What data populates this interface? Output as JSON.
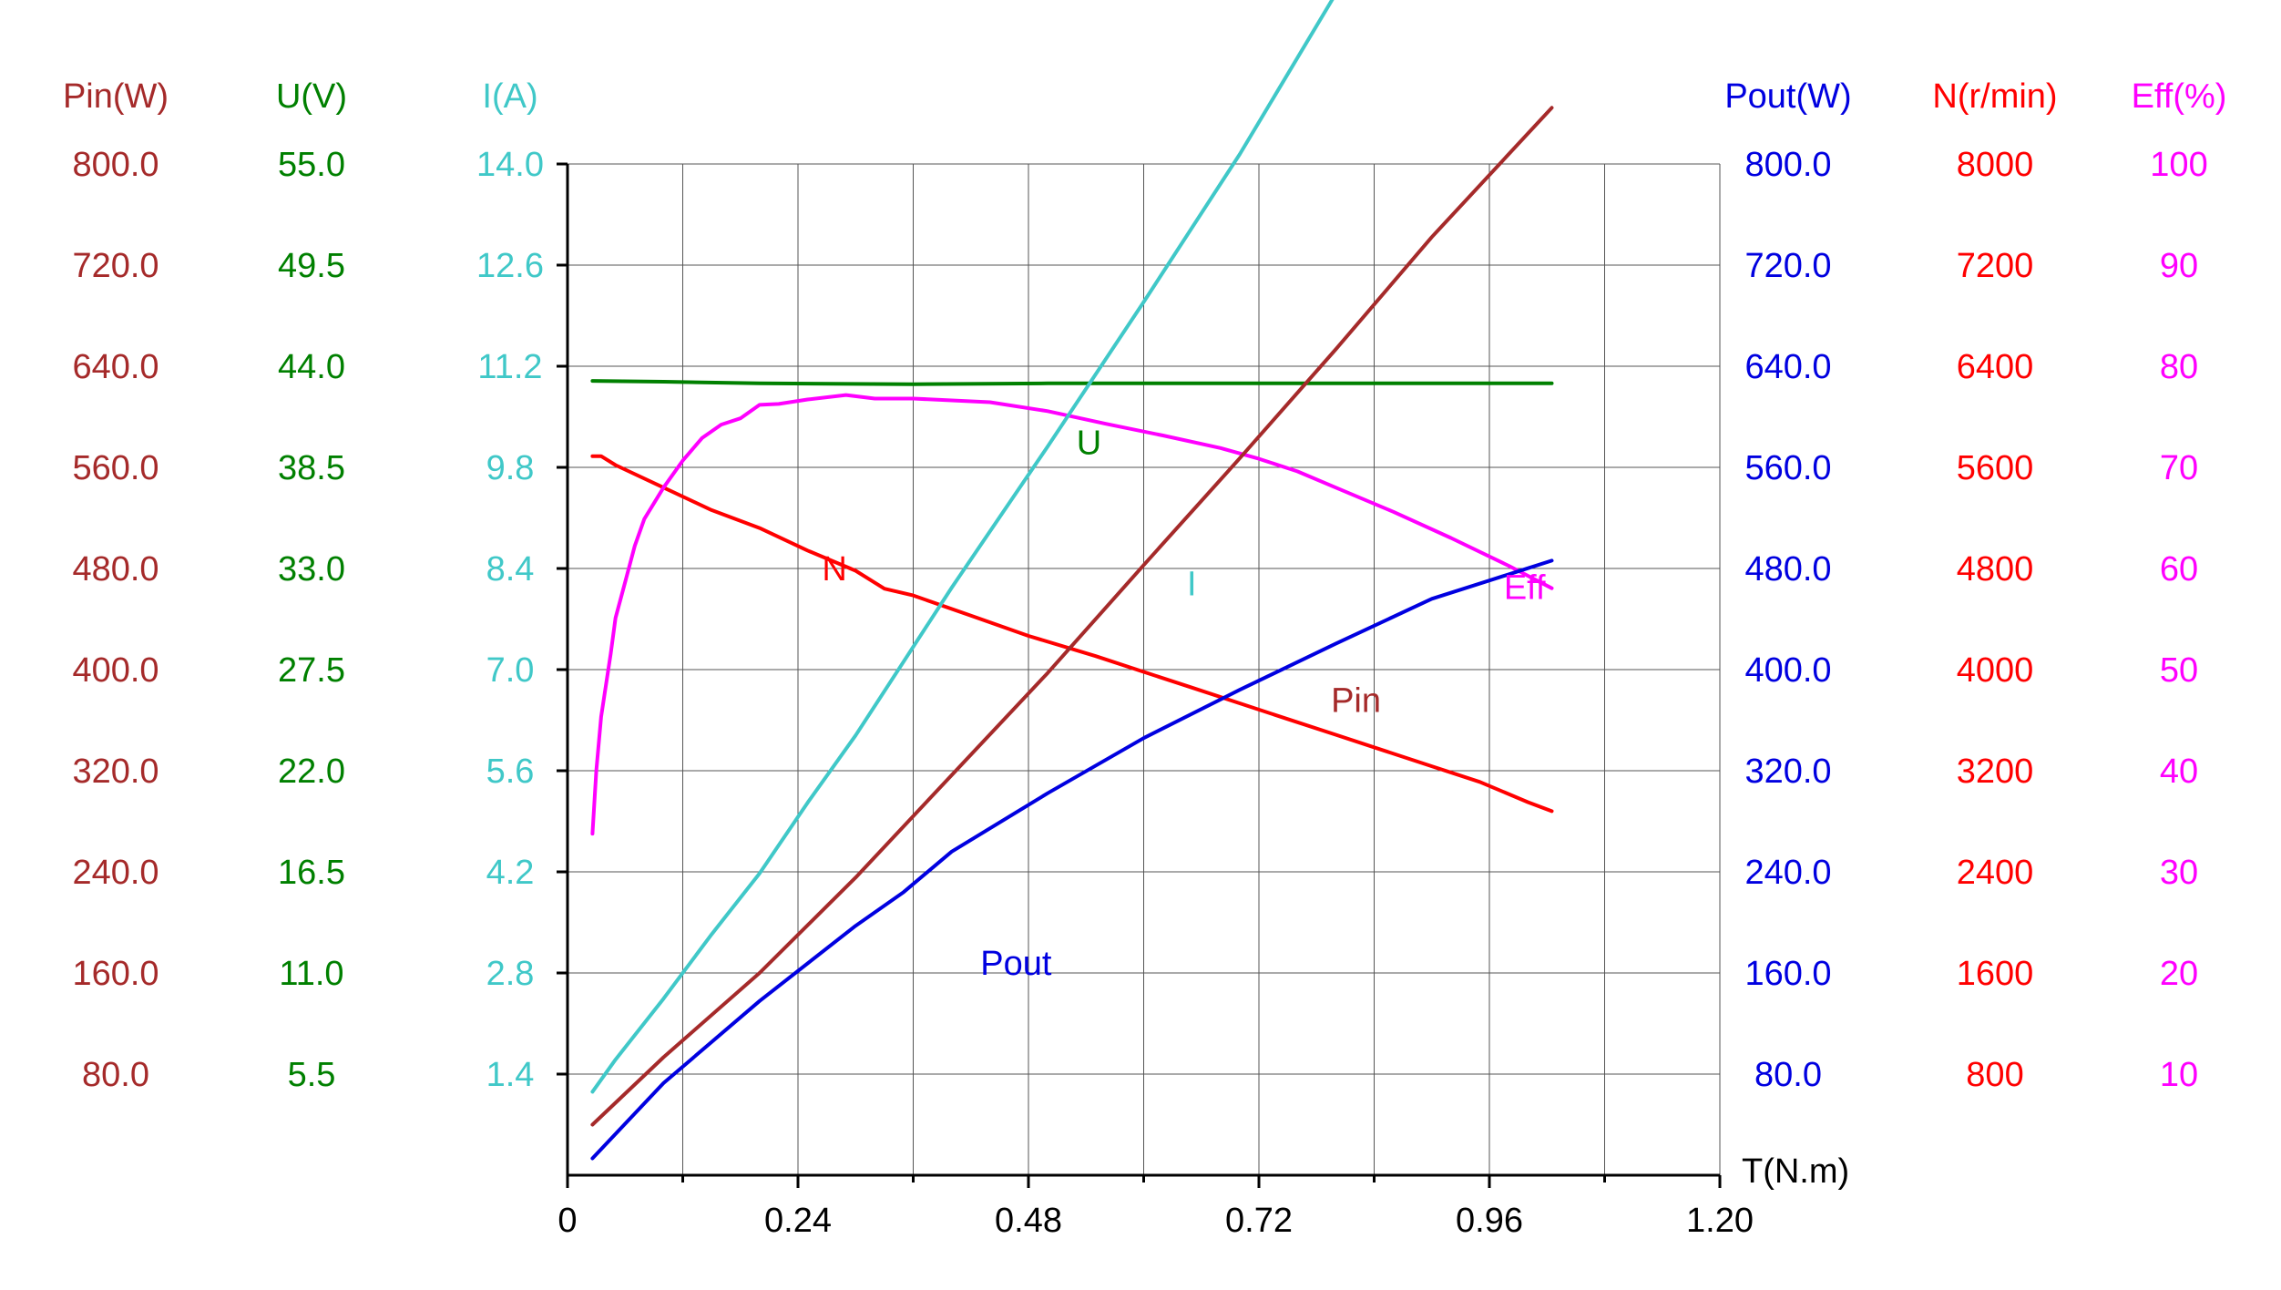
{
  "chart_data": {
    "type": "line",
    "xlabel": "T(N.m)",
    "x_ticks": [
      "0",
      "0.24",
      "0.48",
      "0.72",
      "0.96",
      "1.20"
    ],
    "xlim": [
      0,
      1.2
    ],
    "grid": true,
    "axes": [
      {
        "key": "Pin",
        "title": "Pin(W)",
        "side": "left",
        "color": "#A52A2A",
        "min": 0,
        "max": 900,
        "ticks": [
          "80.0",
          "160.0",
          "240.0",
          "320.0",
          "400.0",
          "480.0",
          "560.0",
          "640.0",
          "720.0",
          "800.0"
        ]
      },
      {
        "key": "U",
        "title": "U(V)",
        "side": "left",
        "color": "#008000",
        "min": 0,
        "max": 61.875,
        "ticks": [
          "5.5",
          "11.0",
          "16.5",
          "22.0",
          "27.5",
          "33.0",
          "38.5",
          "44.0",
          "49.5",
          "55.0"
        ]
      },
      {
        "key": "I",
        "title": "I(A)",
        "side": "left",
        "color": "#40C8C8",
        "min": 0,
        "max": 15.75,
        "ticks": [
          "1.4",
          "2.8",
          "4.2",
          "5.6",
          "7.0",
          "8.4",
          "9.8",
          "11.2",
          "12.6",
          "14.0"
        ]
      },
      {
        "key": "Pout",
        "title": "Pout(W)",
        "side": "right",
        "color": "#0000E0",
        "min": 0,
        "max": 900,
        "ticks": [
          "80.0",
          "160.0",
          "240.0",
          "320.0",
          "400.0",
          "480.0",
          "560.0",
          "640.0",
          "720.0",
          "800.0"
        ]
      },
      {
        "key": "N",
        "title": "N(r/min)",
        "side": "right",
        "color": "#FF0000",
        "min": 0,
        "max": 9000,
        "ticks": [
          "800",
          "1600",
          "2400",
          "3200",
          "4000",
          "4800",
          "5600",
          "6400",
          "7200",
          "8000"
        ]
      },
      {
        "key": "Eff",
        "title": "Eff(%)",
        "side": "right",
        "color": "#FF00FF",
        "min": 0,
        "max": 112.5,
        "ticks": [
          "10",
          "20",
          "30",
          "40",
          "50",
          "60",
          "70",
          "80",
          "90",
          "100"
        ]
      }
    ],
    "series": [
      {
        "name": "U",
        "axis": "U",
        "color": "#008000",
        "label_at": [
          0.53,
          44.8
        ],
        "points": [
          [
            0.026,
            48.6
          ],
          [
            0.1,
            48.55
          ],
          [
            0.2,
            48.45
          ],
          [
            0.36,
            48.4
          ],
          [
            0.5,
            48.45
          ],
          [
            0.7,
            48.45
          ],
          [
            0.9,
            48.45
          ],
          [
            1.025,
            48.45
          ]
        ]
      },
      {
        "name": "N",
        "axis": "N",
        "color": "#FF0000",
        "label_at": [
          0.265,
          5390
        ],
        "points": [
          [
            0.026,
            6400
          ],
          [
            0.035,
            6400
          ],
          [
            0.05,
            6320
          ],
          [
            0.1,
            6120
          ],
          [
            0.15,
            5920
          ],
          [
            0.2,
            5760
          ],
          [
            0.25,
            5560
          ],
          [
            0.3,
            5380
          ],
          [
            0.33,
            5220
          ],
          [
            0.36,
            5160
          ],
          [
            0.42,
            4980
          ],
          [
            0.48,
            4800
          ],
          [
            0.55,
            4620
          ],
          [
            0.6,
            4480
          ],
          [
            0.65,
            4340
          ],
          [
            0.7,
            4200
          ],
          [
            0.75,
            4060
          ],
          [
            0.8,
            3920
          ],
          [
            0.85,
            3780
          ],
          [
            0.9,
            3640
          ],
          [
            0.95,
            3500
          ],
          [
            1.0,
            3320
          ],
          [
            1.025,
            3240
          ]
        ]
      },
      {
        "name": "Eff",
        "axis": "Eff",
        "color": "#FF00FF",
        "label_at": [
          0.975,
          65.3
        ],
        "points": [
          [
            0.026,
            38.0
          ],
          [
            0.03,
            45.0
          ],
          [
            0.035,
            51.0
          ],
          [
            0.045,
            58.0
          ],
          [
            0.05,
            62.0
          ],
          [
            0.06,
            66.0
          ],
          [
            0.07,
            70.0
          ],
          [
            0.08,
            73.0
          ],
          [
            0.1,
            76.5
          ],
          [
            0.12,
            79.5
          ],
          [
            0.14,
            82.0
          ],
          [
            0.16,
            83.5
          ],
          [
            0.18,
            84.2
          ],
          [
            0.2,
            85.7
          ],
          [
            0.22,
            85.8
          ],
          [
            0.25,
            86.3
          ],
          [
            0.29,
            86.8
          ],
          [
            0.32,
            86.4
          ],
          [
            0.36,
            86.4
          ],
          [
            0.44,
            86.0
          ],
          [
            0.5,
            85.0
          ],
          [
            0.56,
            83.6
          ],
          [
            0.62,
            82.3
          ],
          [
            0.68,
            80.9
          ],
          [
            0.72,
            79.7
          ],
          [
            0.76,
            78.3
          ],
          [
            0.8,
            76.5
          ],
          [
            0.86,
            73.8
          ],
          [
            0.92,
            70.9
          ],
          [
            0.98,
            67.8
          ],
          [
            1.025,
            65.3
          ]
        ]
      },
      {
        "name": "I",
        "axis": "I",
        "color": "#40C8C8",
        "label_at": [
          0.645,
          9.2
        ],
        "points": [
          [
            0.026,
            1.3
          ],
          [
            0.05,
            1.8
          ],
          [
            0.1,
            2.75
          ],
          [
            0.15,
            3.75
          ],
          [
            0.2,
            4.7
          ],
          [
            0.25,
            5.8
          ],
          [
            0.3,
            6.85
          ],
          [
            0.35,
            8.0
          ],
          [
            0.4,
            9.15
          ],
          [
            0.5,
            11.35
          ],
          [
            0.6,
            13.6
          ],
          [
            0.7,
            15.9
          ],
          [
            0.8,
            18.4
          ],
          [
            0.9,
            20.95
          ],
          [
            1.0,
            23.4
          ],
          [
            1.025,
            24.1
          ]
        ]
      }
    ],
    "series_other_axes": [
      {
        "name": "Pin",
        "axis": "Pin",
        "color": "#A52A2A",
        "label_at": [
          0.795,
          422
        ],
        "points": [
          [
            0.026,
            45
          ],
          [
            0.1,
            105
          ],
          [
            0.2,
            180
          ],
          [
            0.3,
            265
          ],
          [
            0.4,
            356
          ],
          [
            0.5,
            447
          ],
          [
            0.6,
            543
          ],
          [
            0.7,
            638
          ],
          [
            0.8,
            735
          ],
          [
            0.9,
            835
          ],
          [
            1.025,
            950
          ]
        ]
      },
      {
        "name": "Pout",
        "axis": "Pout",
        "color": "#0000E0",
        "label_at": [
          0.43,
          188
        ],
        "points": [
          [
            0.026,
            15
          ],
          [
            0.1,
            82
          ],
          [
            0.2,
            155
          ],
          [
            0.3,
            222
          ],
          [
            0.35,
            252
          ],
          [
            0.4,
            288
          ],
          [
            0.5,
            340
          ],
          [
            0.6,
            389
          ],
          [
            0.7,
            432
          ],
          [
            0.8,
            473
          ],
          [
            0.9,
            513
          ],
          [
            1.025,
            547
          ]
        ]
      }
    ]
  }
}
